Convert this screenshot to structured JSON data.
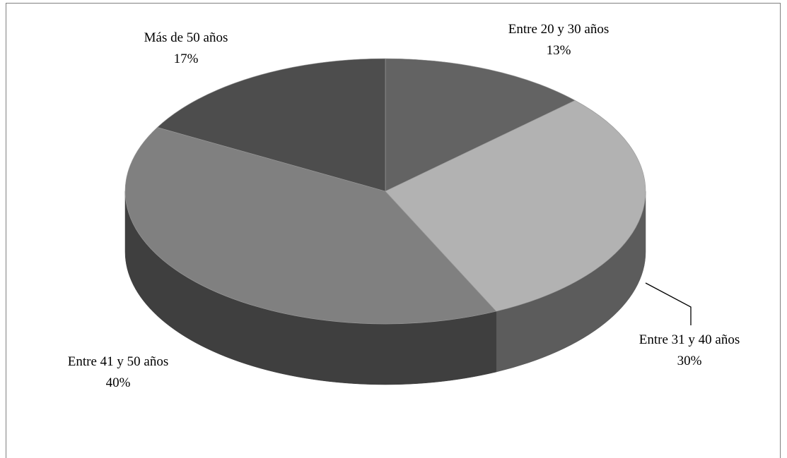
{
  "chart_data": {
    "type": "pie",
    "title": "",
    "categories": [
      "Entre 20 y 30 años",
      "Entre 31 y 40 años",
      "Entre 41 y 50 años",
      "Más de 50 años"
    ],
    "values": [
      13,
      30,
      40,
      17
    ],
    "labels": [
      "13%",
      "30%",
      "40%",
      "17%"
    ],
    "colors": {
      "top": [
        "#636363",
        "#b2b2b2",
        "#808080",
        "#4d4d4d"
      ],
      "side": [
        "#4a4a4a",
        "#5c5c5c",
        "#3f3f3f",
        "#383838"
      ]
    },
    "legend": "none",
    "three_d": true
  }
}
